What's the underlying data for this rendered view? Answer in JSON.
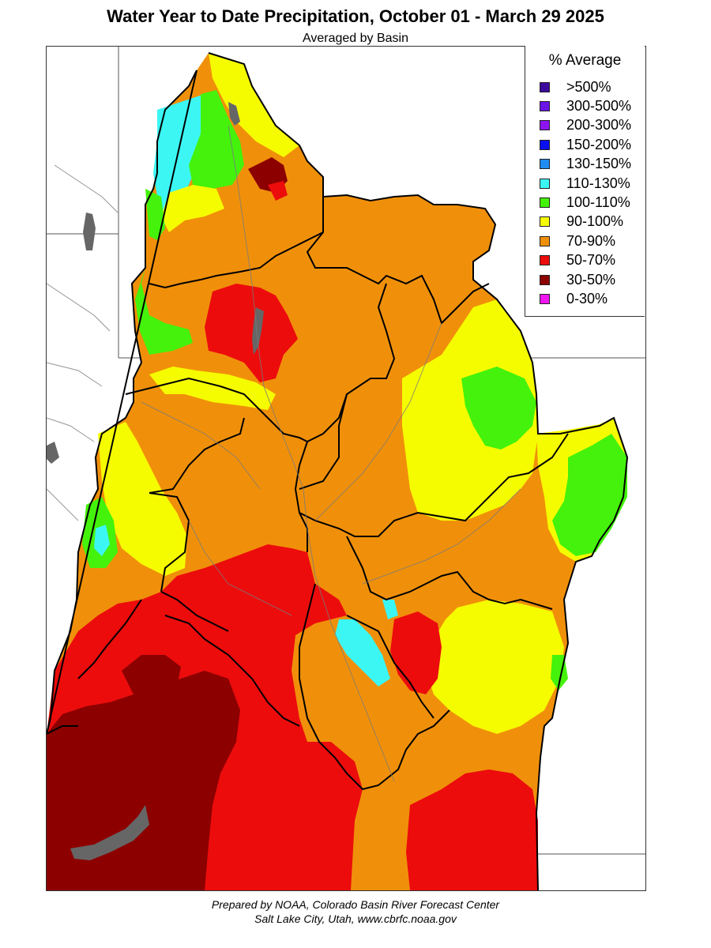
{
  "header": {
    "title": "Water Year to Date Precipitation, October 01  - March 29 2025",
    "subtitle": "Averaged by Basin"
  },
  "legend": {
    "title": "% Average",
    "items": [
      {
        "label": ">500%",
        "color": "#3c0a9c"
      },
      {
        "label": "300-500%",
        "color": "#6a14e6"
      },
      {
        "label": "200-300%",
        "color": "#8c14f0"
      },
      {
        "label": "150-200%",
        "color": "#0a10f0"
      },
      {
        "label": "130-150%",
        "color": "#1e8cf0"
      },
      {
        "label": "110-130%",
        "color": "#3cf6f4"
      },
      {
        "label": "100-110%",
        "color": "#44f20c"
      },
      {
        "label": "90-100%",
        "color": "#f6fc00"
      },
      {
        "label": "70-90%",
        "color": "#f0900a"
      },
      {
        "label": "50-70%",
        "color": "#ec0c0c"
      },
      {
        "label": "30-50%",
        "color": "#8c0000"
      },
      {
        "label": "0-30%",
        "color": "#f014f0"
      }
    ]
  },
  "footer": {
    "line1": "Prepared by NOAA, Colorado Basin River Forecast Center",
    "line2": "Salt Lake City, Utah, www.cbrfc.noaa.gov"
  }
}
